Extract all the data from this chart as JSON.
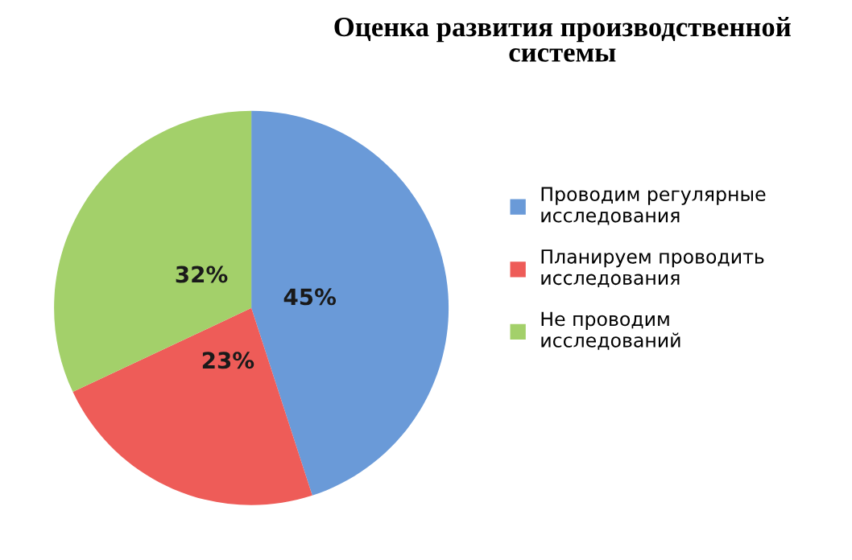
{
  "chart_data": {
    "type": "pie",
    "title": "Оценка развития производственной\nсистемы",
    "categories": [
      "Проводим регулярные\nисследования",
      "Планируем проводить\nисследования",
      "Не проводим\nисследований"
    ],
    "values": [
      45,
      23,
      32
    ],
    "colors": [
      "#6a9ad8",
      "#ee5c58",
      "#a3d06a"
    ],
    "value_labels": [
      "45%",
      "23%",
      "32%"
    ],
    "legend": "right"
  }
}
